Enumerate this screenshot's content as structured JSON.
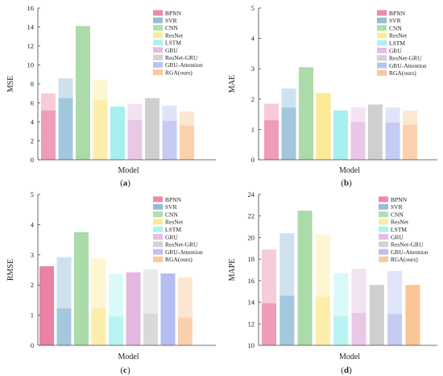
{
  "palette": {
    "BPNN": "#e9769d",
    "SVR": "#7fb3d0",
    "CNN": "#a4d8a1",
    "ResNet": "#f9e88a",
    "LSTM": "#9df0ee",
    "GRU": "#dfb2dd",
    "ResNet-GRU": "#cbcbcb",
    "GRU-Attention": "#aeb7ef",
    "RGA(ours)": "#f8c08c"
  },
  "chart_data": [
    {
      "type": "bar",
      "panel": "(a)",
      "xlabel": "Model",
      "ylabel": "MSE",
      "ylim": [
        0,
        16
      ],
      "yticks": [
        0,
        2,
        4,
        6,
        8,
        10,
        12,
        14,
        16
      ],
      "legend": [
        "BPNN",
        "SVR",
        "CNN",
        "ResNet",
        "LSTM",
        "GRU",
        "ResNet-GRU",
        "GRU-Attention",
        "RGA(ours)"
      ],
      "legend_position": "top-right",
      "series": [
        {
          "name": "BPNN",
          "values": [
            5.2,
            7.0
          ]
        },
        {
          "name": "SVR",
          "values": [
            6.5,
            8.6
          ]
        },
        {
          "name": "CNN",
          "values": [
            14.1
          ]
        },
        {
          "name": "ResNet",
          "values": [
            6.3,
            8.4
          ]
        },
        {
          "name": "LSTM",
          "values": [
            5.6
          ]
        },
        {
          "name": "GRU",
          "values": [
            4.2,
            5.9
          ]
        },
        {
          "name": "ResNet-GRU",
          "values": [
            6.5
          ]
        },
        {
          "name": "GRU-Attention",
          "values": [
            4.1,
            5.7
          ]
        },
        {
          "name": "RGA(ours)",
          "values": [
            3.6,
            5.1
          ]
        }
      ]
    },
    {
      "type": "bar",
      "panel": "(b)",
      "xlabel": "Model",
      "ylabel": "MAE",
      "ylim": [
        0,
        5
      ],
      "yticks": [
        0,
        1,
        2,
        3,
        4,
        5
      ],
      "legend": [
        "BPNN",
        "SVR",
        "CNN",
        "ResNet",
        "LSTM",
        "GRU",
        "ResNet-GRU",
        "GRU-Attention",
        "RGA(ours)"
      ],
      "legend_position": "top-right",
      "series": [
        {
          "name": "BPNN",
          "values": [
            1.3,
            1.85
          ]
        },
        {
          "name": "SVR",
          "values": [
            1.72,
            2.35
          ]
        },
        {
          "name": "CNN",
          "values": [
            3.05
          ]
        },
        {
          "name": "ResNet",
          "values": [
            2.2
          ]
        },
        {
          "name": "LSTM",
          "values": [
            1.63
          ]
        },
        {
          "name": "GRU",
          "values": [
            1.25,
            1.72
          ]
        },
        {
          "name": "ResNet-GRU",
          "values": [
            1.82
          ]
        },
        {
          "name": "GRU-Attention",
          "values": [
            1.23,
            1.72
          ]
        },
        {
          "name": "RGA(ours)",
          "values": [
            1.15,
            1.62
          ]
        }
      ]
    },
    {
      "type": "bar",
      "panel": "(c)",
      "xlabel": "Model",
      "ylabel": "RMSE",
      "ylim": [
        0,
        5
      ],
      "yticks": [
        0,
        1,
        2,
        3,
        4,
        5
      ],
      "legend": [
        "BPNN",
        "SVR",
        "CNN",
        "ResNet",
        "LSTM",
        "GRU",
        "ResNet-GRU",
        "GRU-Attention",
        "RGA(ours)"
      ],
      "legend_position": "top-right",
      "series": [
        {
          "name": "BPNN",
          "values": [
            2.62
          ]
        },
        {
          "name": "SVR",
          "values": [
            1.22,
            2.92
          ]
        },
        {
          "name": "CNN",
          "values": [
            3.75
          ]
        },
        {
          "name": "ResNet",
          "values": [
            1.22,
            2.88
          ]
        },
        {
          "name": "LSTM",
          "values": [
            0.95,
            2.36
          ]
        },
        {
          "name": "GRU",
          "values": [
            2.42
          ]
        },
        {
          "name": "ResNet-GRU",
          "values": [
            1.05,
            2.52
          ]
        },
        {
          "name": "GRU-Attention",
          "values": [
            2.38
          ]
        },
        {
          "name": "RGA(ours)",
          "values": [
            0.92,
            2.25
          ]
        }
      ]
    },
    {
      "type": "bar",
      "panel": "(d)",
      "xlabel": "Model",
      "ylabel": "MAPE",
      "ylim": [
        10,
        24
      ],
      "yticks": [
        10,
        12,
        14,
        16,
        18,
        20,
        22,
        24
      ],
      "legend": [
        "BPNN",
        "SVR",
        "CNN",
        "ResNet",
        "LSTM",
        "GRU",
        "ResNet-GRU",
        "GRU-Attention",
        "RGA(ours)"
      ],
      "legend_position": "top-right",
      "series": [
        {
          "name": "BPNN",
          "values": [
            13.9,
            18.9
          ]
        },
        {
          "name": "SVR",
          "values": [
            14.6,
            20.4
          ]
        },
        {
          "name": "CNN",
          "values": [
            22.5
          ]
        },
        {
          "name": "ResNet",
          "values": [
            14.5,
            20.3
          ]
        },
        {
          "name": "LSTM",
          "values": [
            12.7,
            16.7
          ]
        },
        {
          "name": "GRU",
          "values": [
            13.0,
            17.1
          ]
        },
        {
          "name": "ResNet-GRU",
          "values": [
            15.6
          ]
        },
        {
          "name": "GRU-Attention",
          "values": [
            12.9,
            16.9
          ]
        },
        {
          "name": "RGA(ours)",
          "values": [
            15.6
          ]
        }
      ]
    }
  ]
}
